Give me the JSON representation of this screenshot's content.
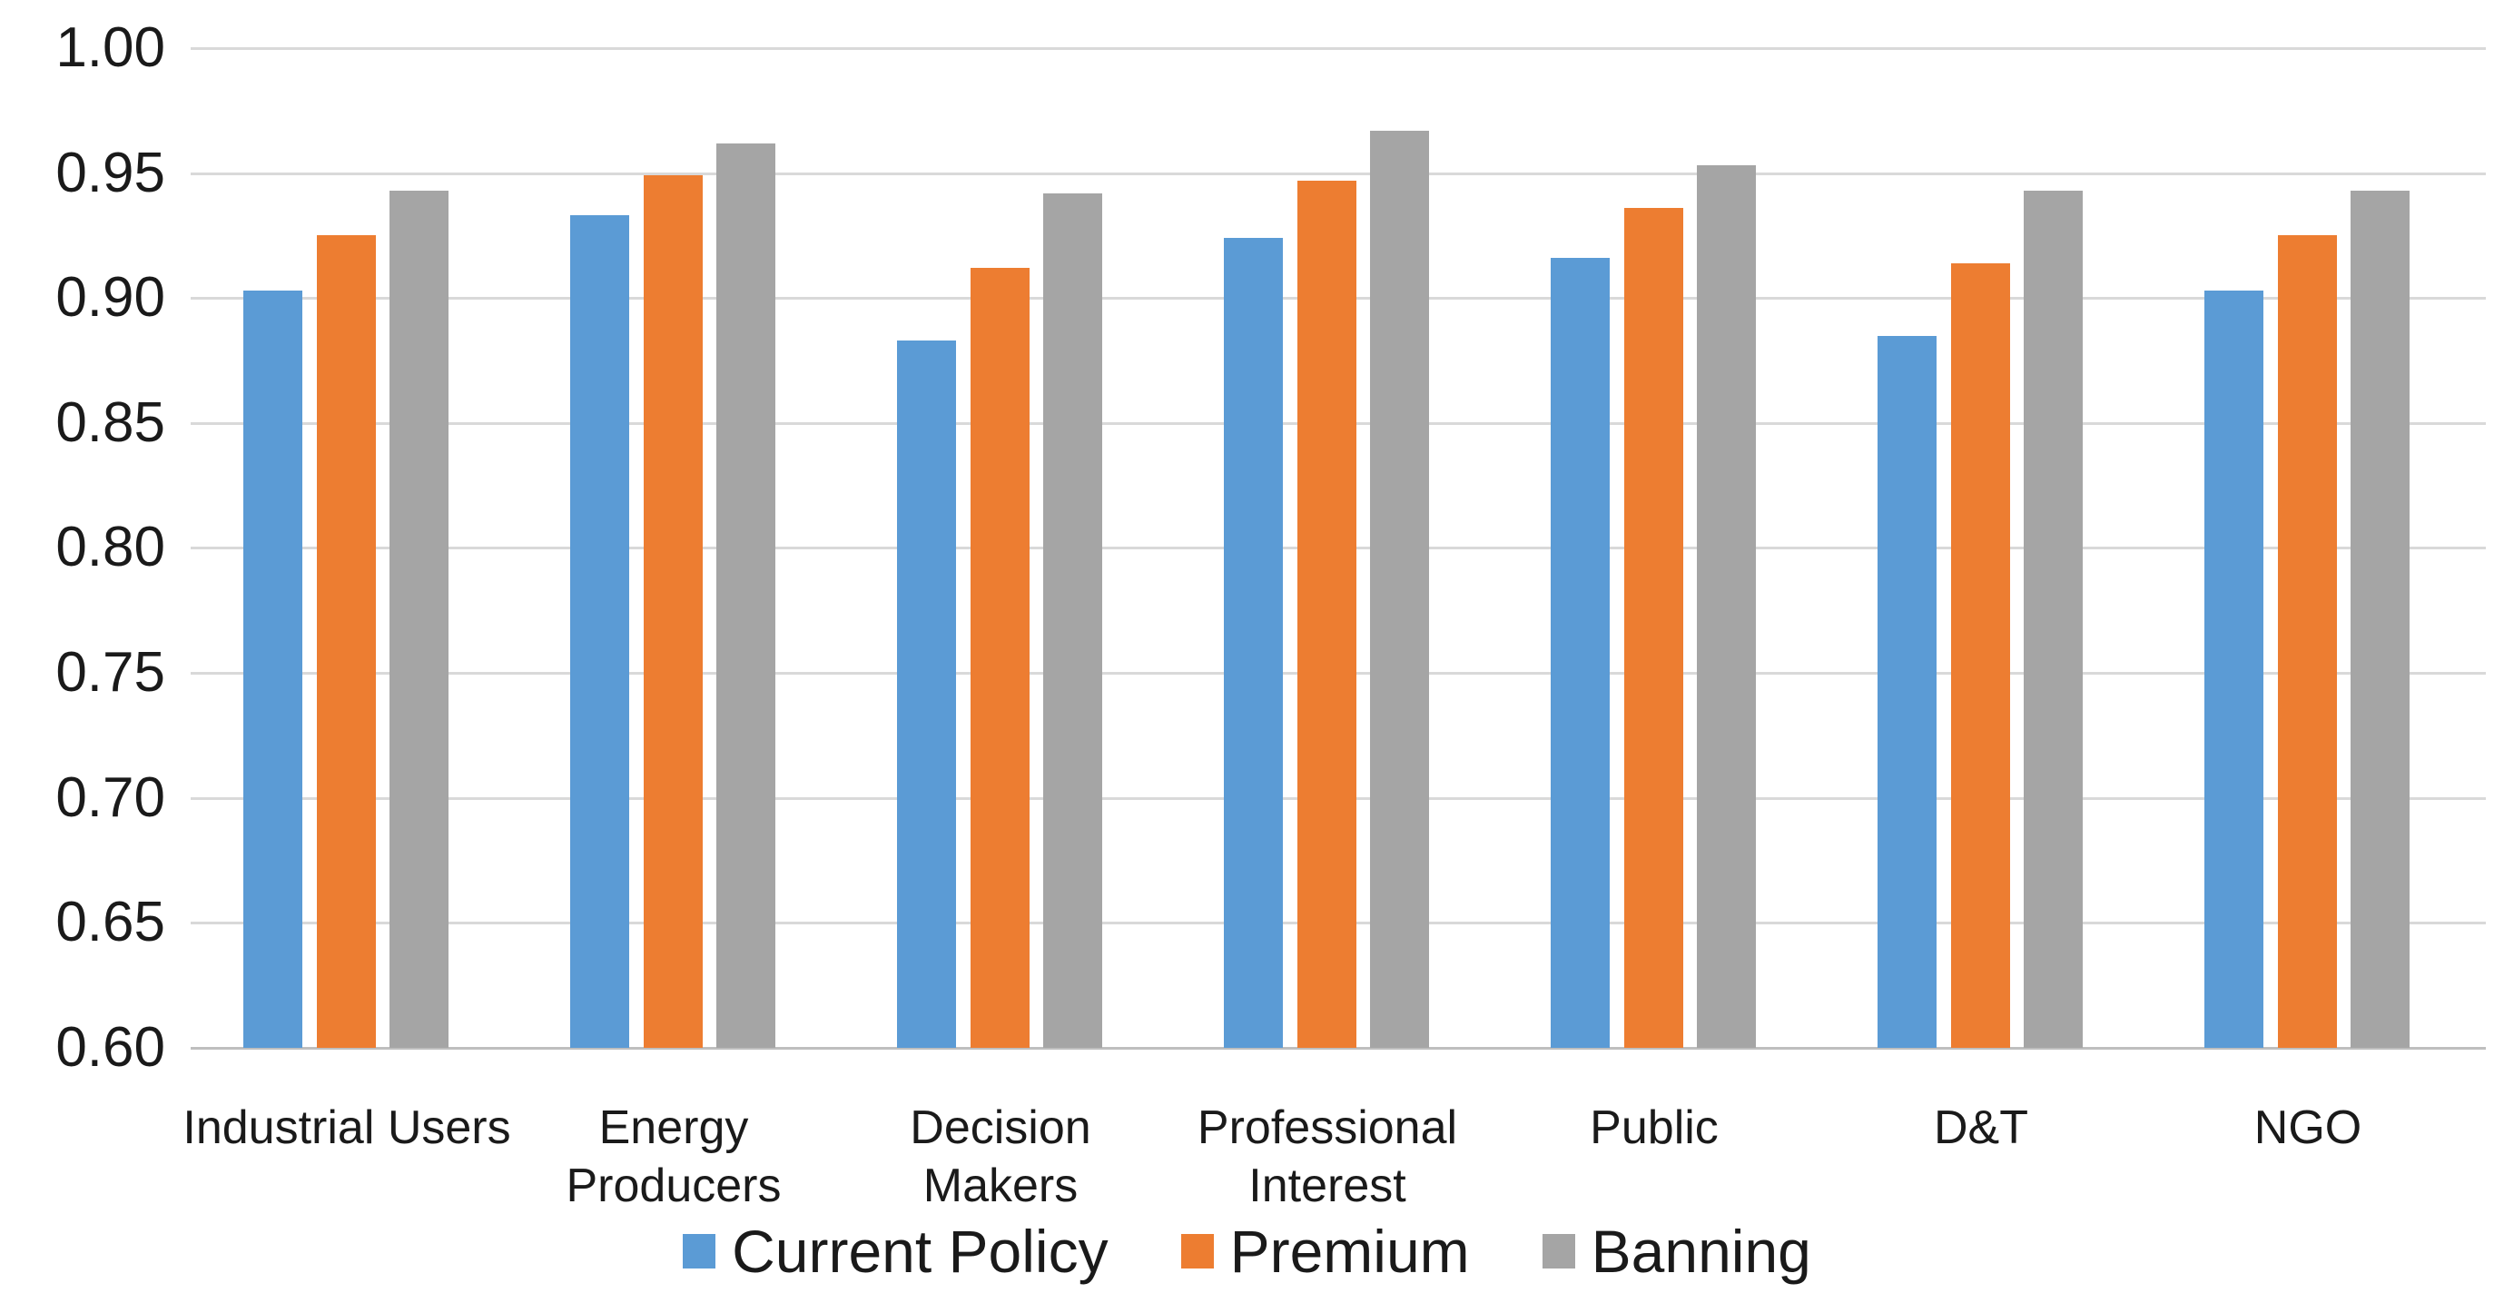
{
  "chart_data": {
    "type": "bar",
    "title": "",
    "xlabel": "",
    "ylabel": "",
    "ylim": [
      0.6,
      1.0
    ],
    "grid": true,
    "legend_position": "bottom",
    "background_color": "#ffffff",
    "gridline_color": "#d9d9d9",
    "axis_line_color": "#bfbfbf",
    "text_color": "#1a1a1a",
    "y_axis": {
      "min": 0.6,
      "max": 1.0,
      "step": 0.05,
      "tick_labels": [
        "0.60",
        "0.65",
        "0.70",
        "0.75",
        "0.80",
        "0.85",
        "0.90",
        "0.95",
        "1.00"
      ]
    },
    "categories": [
      "Industrial Users",
      "Energy Producers",
      "Decision Makers",
      "Professional Interest",
      "Public",
      "D&T",
      "NGO"
    ],
    "category_label_lines": [
      [
        "Industrial Users"
      ],
      [
        "Energy",
        "Producers"
      ],
      [
        "Decision",
        "Makers"
      ],
      [
        "Professional",
        "Interest"
      ],
      [
        "Public"
      ],
      [
        "D&T"
      ],
      [
        "NGO"
      ]
    ],
    "series": [
      {
        "name": "Current Policy",
        "color": "#5b9bd5",
        "values": [
          0.903,
          0.933,
          0.883,
          0.924,
          0.916,
          0.885,
          0.903
        ]
      },
      {
        "name": "Premium",
        "color": "#ed7d31",
        "values": [
          0.925,
          0.949,
          0.912,
          0.947,
          0.936,
          0.914,
          0.925
        ]
      },
      {
        "name": "Banning",
        "color": "#a5a5a5",
        "values": [
          0.943,
          0.962,
          0.942,
          0.967,
          0.953,
          0.943,
          0.943
        ]
      }
    ]
  }
}
